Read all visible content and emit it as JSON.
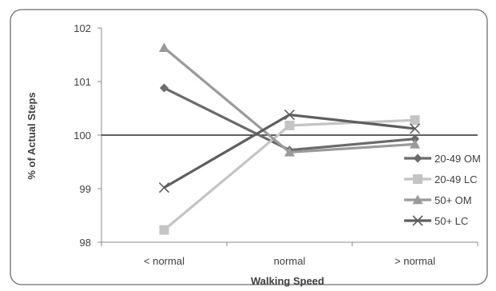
{
  "chart_data": {
    "type": "line",
    "title": "",
    "xlabel": "Walking Speed",
    "ylabel": "% of Actual Steps",
    "categories": [
      "< normal",
      "normal",
      "> normal"
    ],
    "ylim": [
      98,
      102
    ],
    "yticks": [
      "98",
      "99",
      "100",
      "101",
      "102"
    ],
    "reference_line": 100,
    "grid": false,
    "legend_position": "right",
    "series": [
      {
        "name": "20-49 OM",
        "values": [
          100.88,
          99.72,
          99.93
        ],
        "color": "#6b6b6b",
        "marker": "diamond"
      },
      {
        "name": "20-49 LC",
        "values": [
          98.23,
          100.18,
          100.28
        ],
        "color": "#c4c4c4",
        "marker": "square"
      },
      {
        "name": "50+ OM",
        "values": [
          101.63,
          99.68,
          99.83
        ],
        "color": "#9a9a9a",
        "marker": "triangle"
      },
      {
        "name": "50+ LC",
        "values": [
          99.02,
          100.38,
          100.12
        ],
        "color": "#5e5e5e",
        "marker": "x"
      }
    ]
  }
}
